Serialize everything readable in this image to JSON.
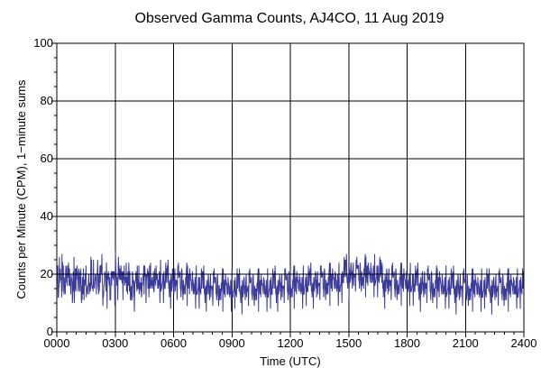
{
  "chart_data": {
    "type": "line",
    "title": "Observed Gamma Counts, AJ4CO, 11 Aug 2019",
    "xlabel": "Time (UTC)",
    "ylabel": "Counts per Minute (CPM), 1−minute sums",
    "xlim": [
      0,
      1440
    ],
    "ylim": [
      0,
      100
    ],
    "x_ticks": [
      {
        "value": 0,
        "label": "0000"
      },
      {
        "value": 180,
        "label": "0300"
      },
      {
        "value": 360,
        "label": "0600"
      },
      {
        "value": 540,
        "label": "0900"
      },
      {
        "value": 720,
        "label": "1200"
      },
      {
        "value": 900,
        "label": "1500"
      },
      {
        "value": 1080,
        "label": "1800"
      },
      {
        "value": 1260,
        "label": "2100"
      },
      {
        "value": 1440,
        "label": "2400"
      }
    ],
    "y_ticks": [
      {
        "value": 0,
        "label": "0"
      },
      {
        "value": 20,
        "label": "20"
      },
      {
        "value": 40,
        "label": "40"
      },
      {
        "value": 60,
        "label": "60"
      },
      {
        "value": 80,
        "label": "80"
      },
      {
        "value": 100,
        "label": "100"
      }
    ],
    "grid": true,
    "reference_line": {
      "y": 20,
      "color": "#000000"
    },
    "series": [
      {
        "color": "#3a3a9a",
        "sampling": "1-minute sums, 1440 points from 0000 to 2400 UTC",
        "mean_cpm": 17,
        "range_cpm": [
          4,
          31
        ]
      }
    ]
  }
}
